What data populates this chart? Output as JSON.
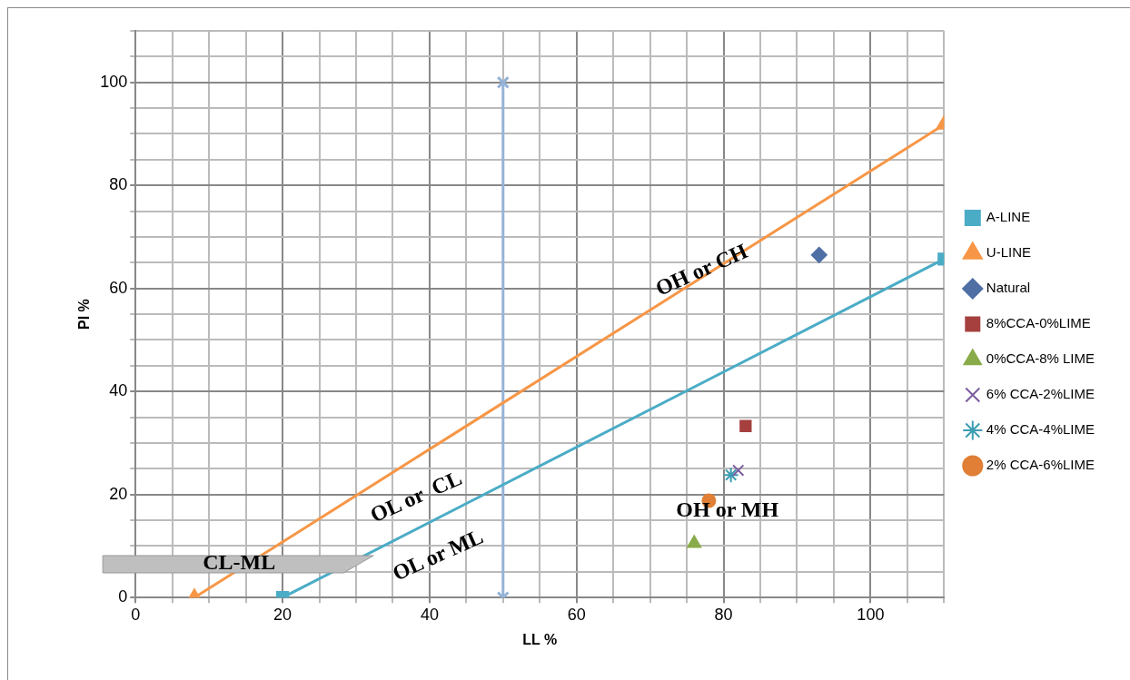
{
  "chart_data": {
    "type": "scatter",
    "xlabel": "LL %",
    "ylabel": "PI %",
    "xlim": [
      0,
      110
    ],
    "ylim": [
      0,
      110
    ],
    "xticks": [
      0,
      {
        "value": 5,
        "label": null
      },
      {
        "value": 10,
        "label": null
      },
      {
        "value": 15,
        "label": null
      },
      20,
      {
        "value": 25,
        "label": null
      },
      {
        "value": 30,
        "label": null
      },
      {
        "value": 35,
        "label": null
      },
      40,
      {
        "value": 45,
        "label": null
      },
      {
        "value": 50,
        "label": null
      },
      {
        "value": 55,
        "label": null
      },
      60,
      {
        "value": 65,
        "label": null
      },
      {
        "value": 70,
        "label": null
      },
      {
        "value": 75,
        "label": null
      },
      80,
      {
        "value": 85,
        "label": null
      },
      {
        "value": 90,
        "label": null
      },
      {
        "value": 95,
        "label": null
      },
      100,
      {
        "value": 105,
        "label": null
      },
      {
        "value": 110,
        "label": null
      }
    ],
    "yticks": [
      0,
      {
        "value": 5,
        "label": null
      },
      {
        "value": 10,
        "label": null
      },
      {
        "value": 15,
        "label": null
      },
      20,
      {
        "value": 25,
        "label": null
      },
      {
        "value": 30,
        "label": null
      },
      {
        "value": 35,
        "label": null
      },
      40,
      {
        "value": 45,
        "label": null
      },
      {
        "value": 50,
        "label": null
      },
      {
        "value": 55,
        "label": null
      },
      60,
      {
        "value": 65,
        "label": null
      },
      {
        "value": 70,
        "label": null
      },
      {
        "value": 75,
        "label": null
      },
      80,
      {
        "value": 85,
        "label": null
      },
      {
        "value": 90,
        "label": null
      },
      {
        "value": 95,
        "label": null
      },
      100,
      {
        "value": 105,
        "label": null
      },
      {
        "value": 110,
        "label": null
      }
    ],
    "grid": true,
    "legend": "right",
    "series": [
      {
        "name": "A-LINE",
        "type": "line",
        "color": "#4bacc6",
        "marker": "square",
        "x": [
          20,
          110
        ],
        "values": [
          0,
          65.7
        ]
      },
      {
        "name": "U-LINE",
        "type": "line",
        "color": "#f79646",
        "marker": "triangle",
        "x": [
          8,
          110
        ],
        "values": [
          0,
          91.8
        ]
      },
      {
        "type": "line",
        "color": "#95b3d7",
        "marker": "cross",
        "x": [
          50,
          50
        ],
        "values": [
          0,
          100
        ]
      },
      {
        "name": "Natural",
        "type": "scatter",
        "color": "#4f6fa5",
        "marker": "diamond",
        "x": [
          93
        ],
        "values": [
          66.5
        ]
      },
      {
        "name": "8%CCA-0%LIME",
        "type": "scatter",
        "color": "#a5403f",
        "marker": "square",
        "x": [
          83
        ],
        "values": [
          33.3
        ]
      },
      {
        "name": "0%CCA-8% LIME",
        "type": "scatter",
        "color": "#8aab4a",
        "marker": "triangle",
        "x": [
          76
        ],
        "values": [
          10.5
        ]
      },
      {
        "name": "6% CCA-2%LIME",
        "type": "scatter",
        "color": "#7c5ea0",
        "marker": "cross",
        "x": [
          82
        ],
        "values": [
          24.7
        ]
      },
      {
        "name": "4% CCA-4%LIME",
        "type": "scatter",
        "color": "#3d9db3",
        "x": [
          81
        ],
        "values": [
          23.8
        ]
      },
      {
        "name": "2% CCA-6%LIME",
        "type": "scatter",
        "color": "#e07f35",
        "marker": "circle",
        "x": [
          78
        ],
        "values": [
          18.8
        ]
      }
    ],
    "annotations": [
      "OH or CH",
      "OL or  CL",
      "OL or ML",
      "OH or MH",
      "CL-ML"
    ]
  }
}
